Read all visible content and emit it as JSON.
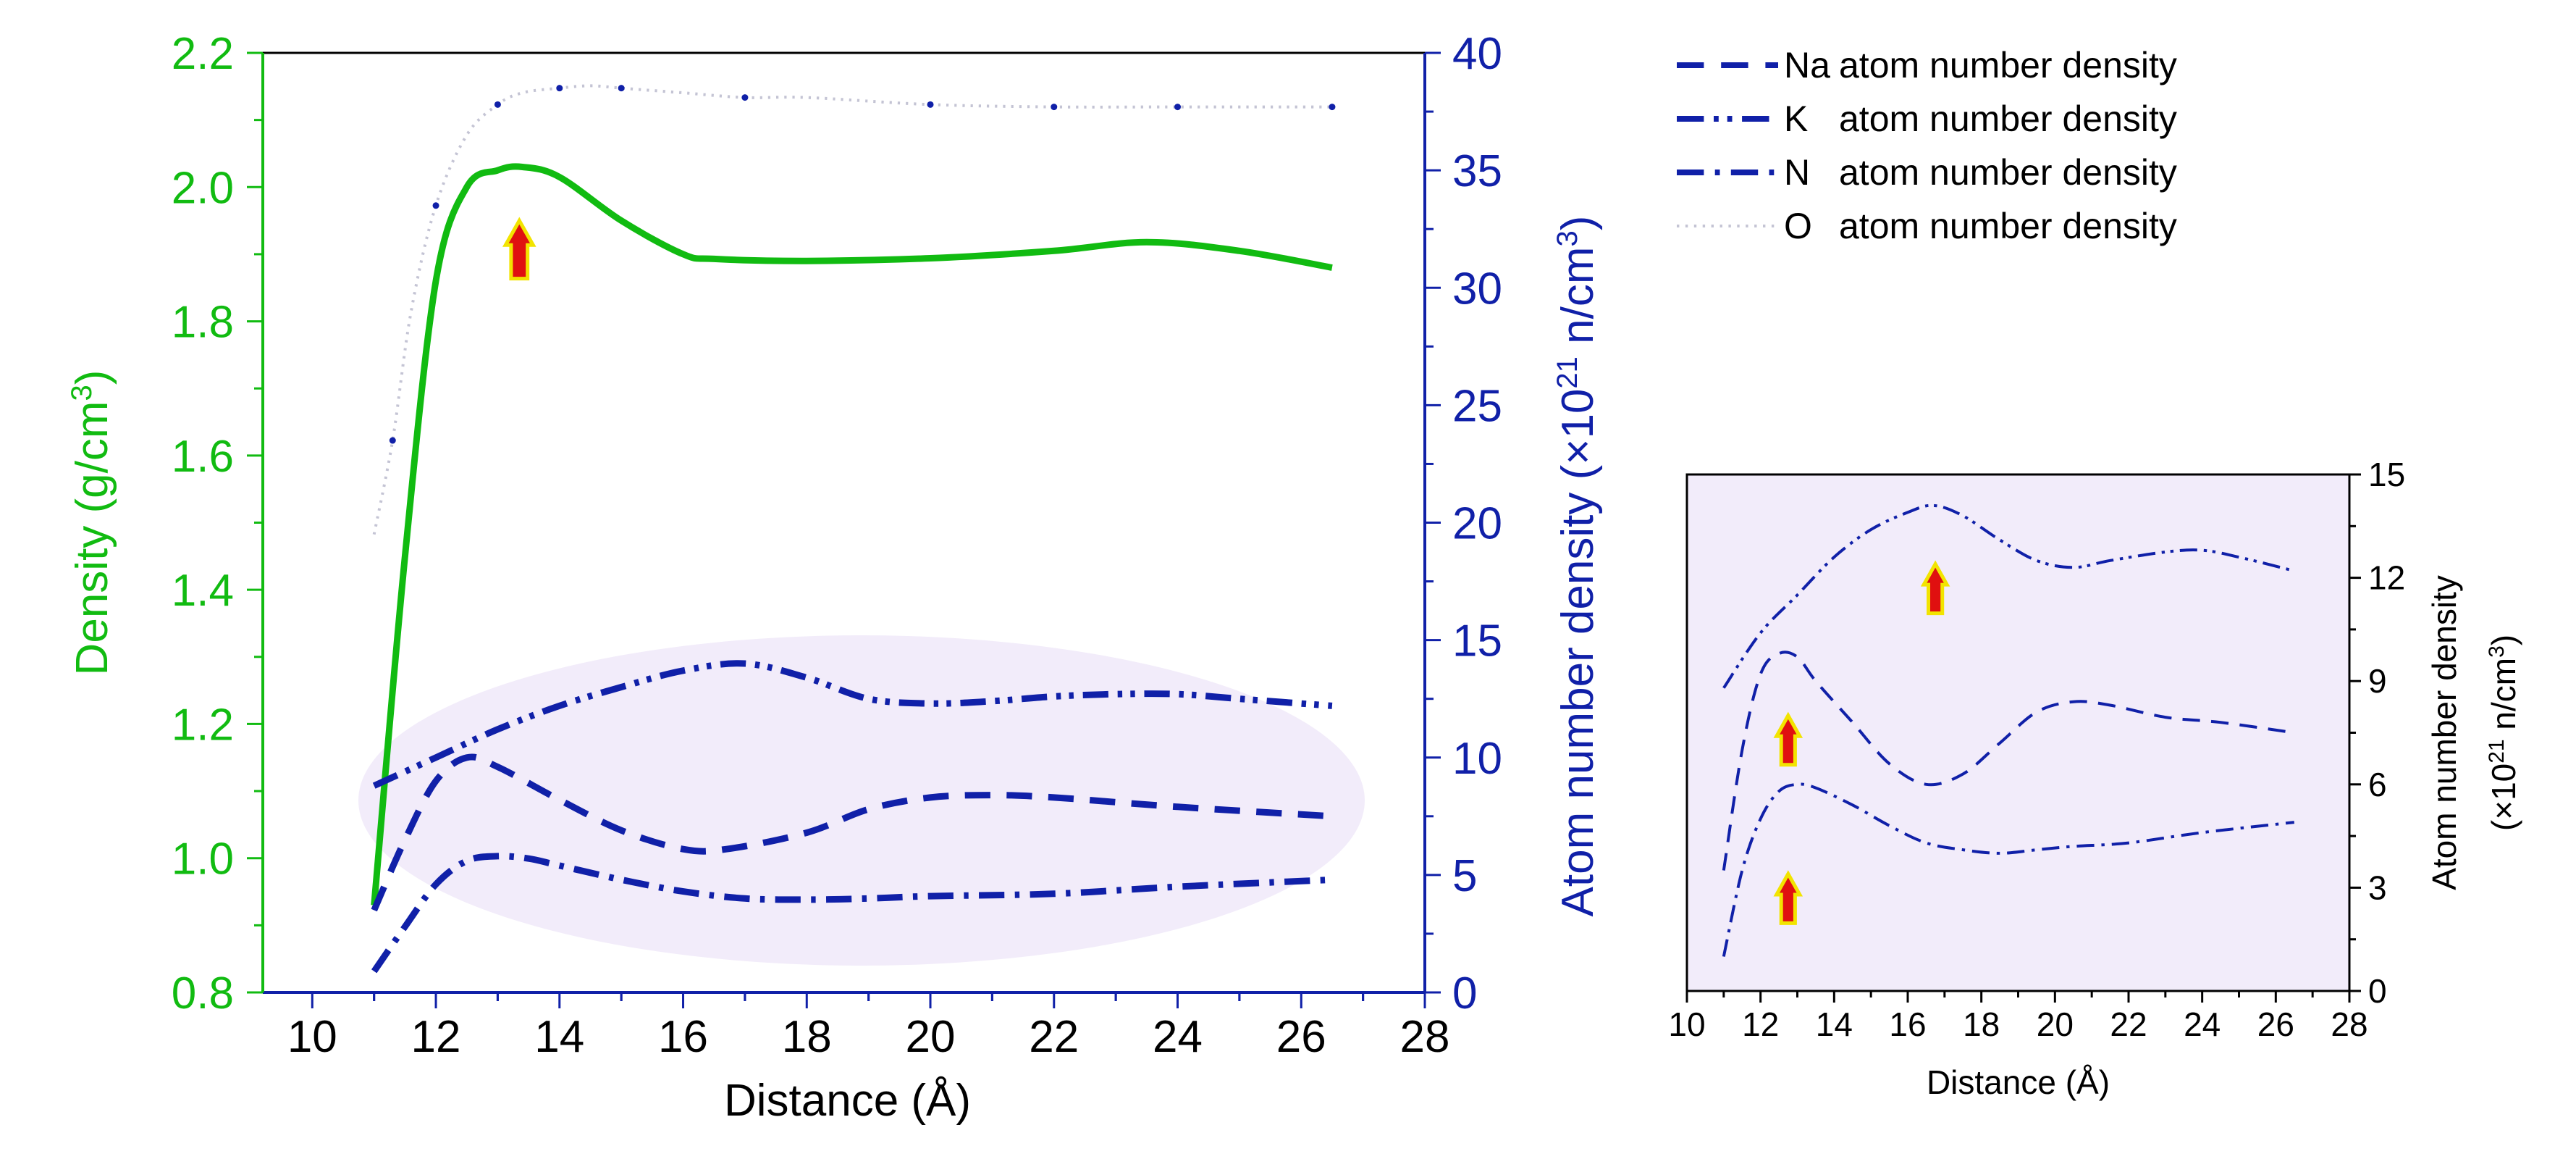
{
  "chart_data": [
    {
      "id": "main",
      "type": "line",
      "xlabel": "Distance (Å)",
      "xlim": [
        9.2,
        28
      ],
      "xticks": [
        10,
        12,
        14,
        16,
        18,
        20,
        22,
        24,
        26,
        28
      ],
      "y_left": {
        "label": "Density (g/cm³)",
        "label_parts": [
          "Density (g/cm",
          "3",
          ")"
        ],
        "ylim": [
          0.8,
          2.2
        ],
        "ticks": [
          "0.8",
          "1.0",
          "1.2",
          "1.4",
          "1.6",
          "1.8",
          "2.0",
          "2.2"
        ],
        "color": "#11bb11"
      },
      "y_right": {
        "label": "Atom number density (×10²¹ n/cm³)",
        "label_parts": [
          "Atom number density (×10",
          "21",
          " n/cm",
          "3",
          ")"
        ],
        "ylim": [
          0,
          40
        ],
        "ticks": [
          "0",
          "5",
          "10",
          "15",
          "20",
          "25",
          "30",
          "35",
          "40"
        ],
        "color": "#1020a8"
      },
      "series": [
        {
          "name": "Density",
          "axis": "left",
          "style": "solid",
          "color": "#11bb11",
          "x": [
            11.0,
            11.5,
            12.0,
            12.5,
            13.0,
            13.4,
            14.0,
            15.0,
            16.0,
            16.5,
            18.0,
            20.0,
            22.0,
            23.5,
            25.0,
            26.5
          ],
          "y": [
            0.93,
            1.45,
            1.86,
            2.0,
            2.025,
            2.03,
            2.015,
            1.95,
            1.9,
            1.893,
            1.89,
            1.894,
            1.905,
            1.918,
            1.905,
            1.88
          ]
        },
        {
          "name": "K atom number density",
          "axis": "right",
          "style": "dashdotdot",
          "color": "#1020a8",
          "x": [
            11.0,
            12.0,
            13.0,
            14.0,
            15.0,
            16.0,
            17.0,
            18.0,
            19.0,
            20.0,
            21.0,
            22.0,
            23.0,
            24.0,
            25.0,
            26.5
          ],
          "y": [
            8.8,
            10.0,
            11.2,
            12.2,
            13.0,
            13.7,
            14.0,
            13.4,
            12.5,
            12.3,
            12.4,
            12.6,
            12.7,
            12.7,
            12.5,
            12.2
          ]
        },
        {
          "name": "Na atom number density",
          "axis": "right",
          "style": "dash",
          "color": "#1020a8",
          "x": [
            11.0,
            11.5,
            12.0,
            12.5,
            13.0,
            14.0,
            15.0,
            16.0,
            16.7,
            18.0,
            19.0,
            20.0,
            21.0,
            22.0,
            24.0,
            26.5
          ],
          "y": [
            3.5,
            6.5,
            9.0,
            10.0,
            9.6,
            8.2,
            6.9,
            6.1,
            6.1,
            6.8,
            7.8,
            8.3,
            8.4,
            8.3,
            7.9,
            7.5
          ]
        },
        {
          "name": "N atom number density",
          "axis": "right",
          "style": "dashdot",
          "color": "#1020a8",
          "x": [
            11.0,
            11.5,
            12.0,
            12.5,
            13.0,
            13.5,
            14.0,
            15.0,
            16.0,
            17.0,
            18.0,
            19.0,
            20.0,
            22.0,
            24.0,
            26.5
          ],
          "y": [
            0.9,
            2.8,
            4.6,
            5.6,
            5.8,
            5.7,
            5.4,
            4.8,
            4.3,
            4.0,
            3.95,
            4.0,
            4.1,
            4.2,
            4.5,
            4.8
          ]
        },
        {
          "name": "O atom number density",
          "axis": "right",
          "style": "dot",
          "color": "#c4c4d4",
          "x": [
            11.0,
            11.3,
            11.6,
            12.0,
            12.5,
            13.0,
            13.4,
            14.0,
            14.5,
            15.0,
            16.0,
            17.0,
            18.0,
            20.0,
            22.0,
            24.0,
            26.5
          ],
          "y": [
            19.5,
            23.5,
            29.0,
            33.5,
            36.5,
            37.8,
            38.3,
            38.5,
            38.6,
            38.5,
            38.3,
            38.1,
            38.1,
            37.8,
            37.7,
            37.7,
            37.7
          ]
        }
      ],
      "arrow_at": {
        "x": 13.35,
        "y": 1.95
      },
      "ellipse": "low-values region, light purple"
    },
    {
      "id": "inset",
      "type": "line",
      "xlabel": "Distance (Å)",
      "xlim": [
        10,
        28
      ],
      "xticks": [
        10,
        12,
        14,
        16,
        18,
        20,
        22,
        24,
        26,
        28
      ],
      "ylabel": "Atom number density (×10²¹ n/cm³)",
      "ylabel_lines": [
        [
          "Atom number density"
        ],
        [
          "(×10",
          "21",
          " n/cm",
          "3",
          ")"
        ]
      ],
      "ylim": [
        0,
        15
      ],
      "yticks": [
        "0",
        "3",
        "6",
        "9",
        "12",
        "15"
      ],
      "background": "#f2ecfa",
      "series": [
        {
          "name": "K",
          "style": "dashdotdot",
          "color": "#1020a8",
          "x": [
            11.0,
            12.0,
            13.0,
            14.0,
            15.0,
            16.0,
            16.7,
            17.5,
            18.5,
            19.5,
            20.5,
            21.5,
            23.0,
            24.0,
            25.0,
            26.5
          ],
          "y": [
            8.8,
            10.4,
            11.5,
            12.6,
            13.4,
            13.9,
            14.1,
            13.8,
            13.1,
            12.5,
            12.3,
            12.5,
            12.75,
            12.8,
            12.6,
            12.2
          ]
        },
        {
          "name": "Na",
          "style": "dash",
          "color": "#1020a8",
          "x": [
            11.0,
            11.5,
            12.0,
            12.5,
            13.0,
            13.5,
            14.5,
            15.5,
            16.5,
            17.5,
            18.5,
            19.5,
            20.5,
            21.5,
            23.0,
            24.5,
            26.5
          ],
          "y": [
            3.5,
            7.0,
            9.2,
            9.8,
            9.7,
            9.0,
            7.8,
            6.6,
            6.0,
            6.3,
            7.2,
            8.1,
            8.4,
            8.3,
            7.95,
            7.8,
            7.5
          ]
        },
        {
          "name": "N",
          "style": "dashdot",
          "color": "#1020a8",
          "x": [
            11.0,
            11.5,
            12.0,
            12.5,
            13.0,
            13.5,
            14.5,
            15.5,
            16.5,
            17.5,
            18.5,
            19.5,
            20.5,
            22.0,
            24.0,
            26.5
          ],
          "y": [
            1.0,
            3.5,
            5.0,
            5.8,
            6.0,
            5.9,
            5.4,
            4.8,
            4.3,
            4.1,
            4.0,
            4.1,
            4.2,
            4.3,
            4.6,
            4.9
          ]
        }
      ],
      "arrows_at": [
        {
          "x": 12.75,
          "y": 8.0
        },
        {
          "x": 12.75,
          "y": 3.4
        },
        {
          "x": 16.75,
          "y": 12.4
        }
      ]
    }
  ],
  "legend": [
    {
      "symbol": "Na",
      "text": "atom number density",
      "style": "dash",
      "color": "#1020a8"
    },
    {
      "symbol": "K",
      "text": "atom number density",
      "style": "dashdotdot",
      "color": "#1020a8"
    },
    {
      "symbol": "N",
      "text": "atom number density",
      "style": "dashdot",
      "color": "#1020a8"
    },
    {
      "symbol": "O",
      "text": "atom number density",
      "style": "dot",
      "color": "#c4c4d4"
    }
  ]
}
